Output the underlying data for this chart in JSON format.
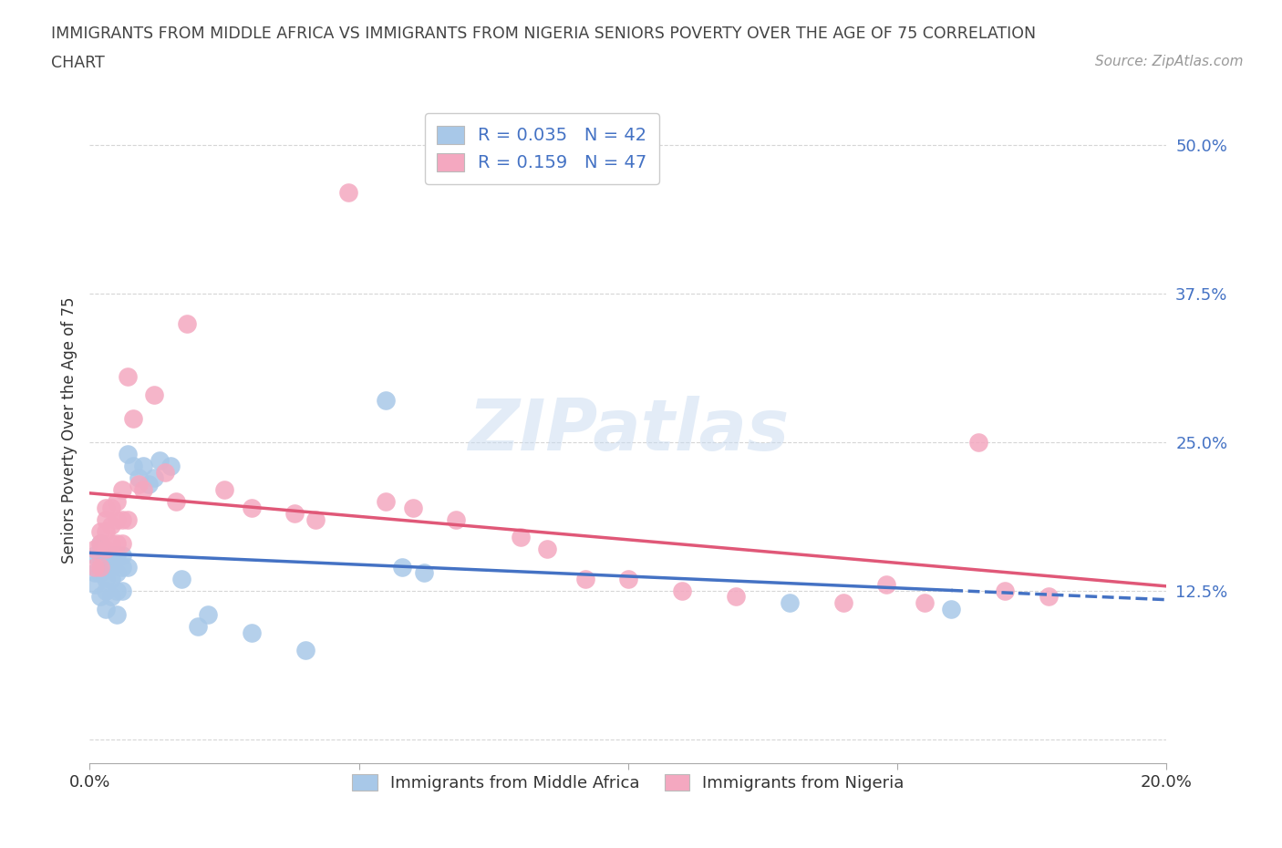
{
  "title_line1": "IMMIGRANTS FROM MIDDLE AFRICA VS IMMIGRANTS FROM NIGERIA SENIORS POVERTY OVER THE AGE OF 75 CORRELATION",
  "title_line2": "CHART",
  "source_text": "Source: ZipAtlas.com",
  "ylabel": "Seniors Poverty Over the Age of 75",
  "xlim": [
    0.0,
    0.2
  ],
  "ylim": [
    -0.02,
    0.54
  ],
  "yticks": [
    0.0,
    0.125,
    0.25,
    0.375,
    0.5
  ],
  "ytick_labels": [
    "",
    "12.5%",
    "25.0%",
    "37.5%",
    "50.0%"
  ],
  "xticks": [
    0.0,
    0.05,
    0.1,
    0.15,
    0.2
  ],
  "xtick_labels": [
    "0.0%",
    "",
    "",
    "",
    "20.0%"
  ],
  "r_blue": 0.035,
  "n_blue": 42,
  "r_pink": 0.159,
  "n_pink": 47,
  "blue_color": "#a8c8e8",
  "pink_color": "#f4a8c0",
  "blue_line_color": "#4472c4",
  "pink_line_color": "#e05878",
  "watermark": "ZIPatlas",
  "legend_label_blue": "Immigrants from Middle Africa",
  "legend_label_pink": "Immigrants from Nigeria",
  "blue_scatter_x": [
    0.001,
    0.001,
    0.001,
    0.002,
    0.002,
    0.002,
    0.002,
    0.003,
    0.003,
    0.003,
    0.003,
    0.003,
    0.004,
    0.004,
    0.004,
    0.004,
    0.005,
    0.005,
    0.005,
    0.005,
    0.006,
    0.006,
    0.006,
    0.007,
    0.007,
    0.008,
    0.009,
    0.01,
    0.011,
    0.012,
    0.013,
    0.015,
    0.017,
    0.02,
    0.022,
    0.03,
    0.04,
    0.055,
    0.058,
    0.062,
    0.13,
    0.16
  ],
  "blue_scatter_y": [
    0.155,
    0.14,
    0.13,
    0.165,
    0.155,
    0.14,
    0.12,
    0.155,
    0.145,
    0.135,
    0.125,
    0.11,
    0.155,
    0.145,
    0.135,
    0.12,
    0.155,
    0.14,
    0.125,
    0.105,
    0.155,
    0.145,
    0.125,
    0.24,
    0.145,
    0.23,
    0.22,
    0.23,
    0.215,
    0.22,
    0.235,
    0.23,
    0.135,
    0.095,
    0.105,
    0.09,
    0.075,
    0.285,
    0.145,
    0.14,
    0.115,
    0.11
  ],
  "pink_scatter_x": [
    0.001,
    0.001,
    0.002,
    0.002,
    0.002,
    0.003,
    0.003,
    0.003,
    0.003,
    0.004,
    0.004,
    0.004,
    0.005,
    0.005,
    0.005,
    0.006,
    0.006,
    0.006,
    0.007,
    0.007,
    0.008,
    0.009,
    0.01,
    0.012,
    0.014,
    0.016,
    0.018,
    0.025,
    0.03,
    0.038,
    0.042,
    0.048,
    0.055,
    0.06,
    0.068,
    0.08,
    0.085,
    0.092,
    0.1,
    0.11,
    0.12,
    0.14,
    0.148,
    0.155,
    0.165,
    0.17,
    0.178
  ],
  "pink_scatter_y": [
    0.16,
    0.145,
    0.175,
    0.165,
    0.145,
    0.195,
    0.185,
    0.175,
    0.16,
    0.195,
    0.18,
    0.165,
    0.2,
    0.185,
    0.165,
    0.21,
    0.185,
    0.165,
    0.305,
    0.185,
    0.27,
    0.215,
    0.21,
    0.29,
    0.225,
    0.2,
    0.35,
    0.21,
    0.195,
    0.19,
    0.185,
    0.46,
    0.2,
    0.195,
    0.185,
    0.17,
    0.16,
    0.135,
    0.135,
    0.125,
    0.12,
    0.115,
    0.13,
    0.115,
    0.25,
    0.125,
    0.12
  ]
}
